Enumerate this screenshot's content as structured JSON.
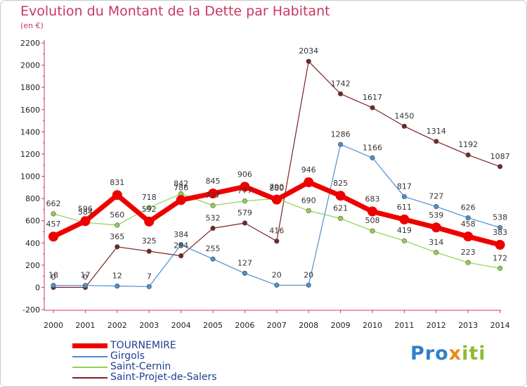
{
  "page": {
    "title": "Evolution du Montant de la Dette par Habitant",
    "subtitle": "(en €)"
  },
  "logo": {
    "part1": "Pro",
    "part2": "x",
    "part3": "iti"
  },
  "chart_data": {
    "type": "line",
    "title": "Evolution du Montant de la Dette par Habitant",
    "subtitle": "(en €)",
    "xlabel": "",
    "ylabel": "",
    "ylim": [
      -200,
      2200
    ],
    "grid": false,
    "legend_position": "bottom-left",
    "x": [
      "2000",
      "2001",
      "2002",
      "2003",
      "2004",
      "2005",
      "2006",
      "2007",
      "2008",
      "2009",
      "2010",
      "2011",
      "2012",
      "2013",
      "2014"
    ],
    "yticks": [
      -200,
      0,
      200,
      400,
      600,
      800,
      1000,
      1200,
      1400,
      1600,
      1800,
      2000,
      2200
    ],
    "series": [
      {
        "name": "TOURNEMIRE",
        "color": "#ee0000",
        "values": [
          457,
          596,
          831,
          592,
          786,
          845,
          906,
          790,
          946,
          825,
          683,
          611,
          539,
          458,
          383
        ]
      },
      {
        "name": "Girgols",
        "color": "#4a8fcf",
        "values": [
          18,
          17,
          12,
          7,
          384,
          255,
          127,
          20,
          20,
          1286,
          1166,
          817,
          727,
          626,
          538
        ]
      },
      {
        "name": "Saint-Cernin",
        "color": "#90d050",
        "values": [
          662,
          584,
          560,
          718,
          842,
          737,
          777,
          800,
          690,
          621,
          508,
          419,
          314,
          223,
          172
        ]
      },
      {
        "name": "Saint-Projet-de-Salers",
        "color": "#7a2222",
        "values": [
          0,
          0,
          365,
          325,
          284,
          532,
          579,
          416,
          2034,
          1742,
          1617,
          1450,
          1314,
          1192,
          1087
        ]
      }
    ]
  }
}
